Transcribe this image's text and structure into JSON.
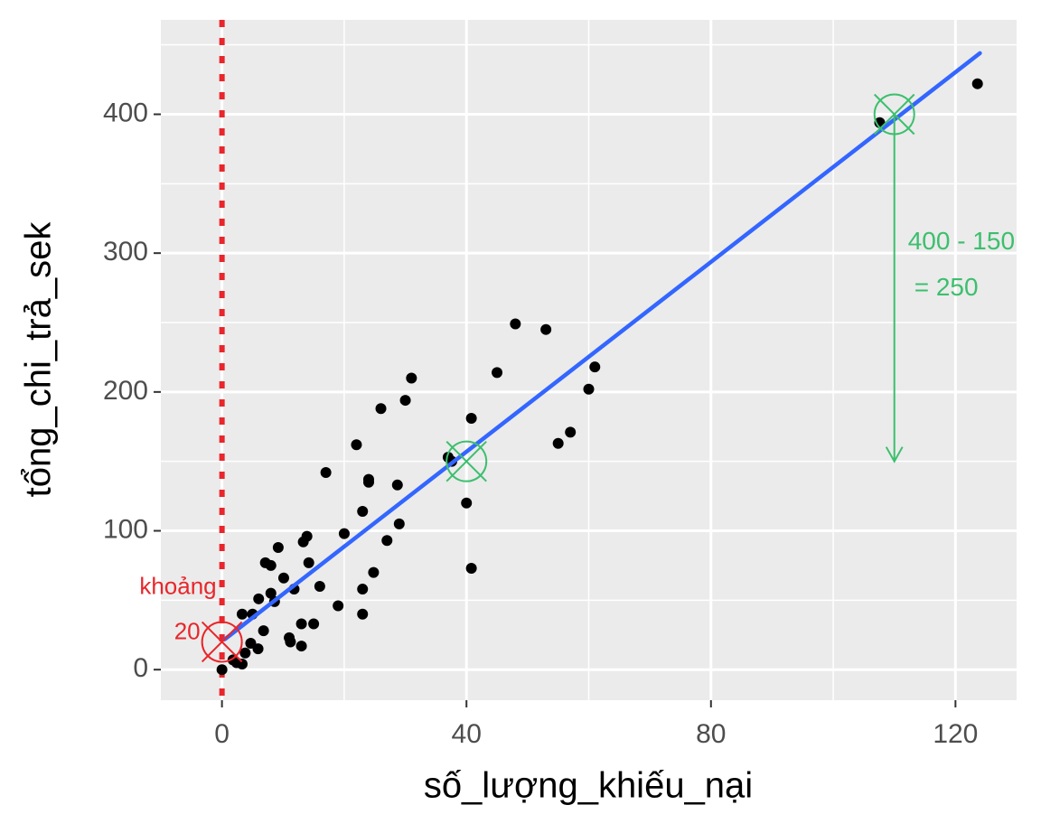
{
  "chart_data": {
    "type": "scatter",
    "x_label": "số_lượng_khiếu_nại",
    "y_label": "tổng_chi_trả_sek",
    "xlim": [
      -10,
      130
    ],
    "ylim": [
      -22,
      468
    ],
    "xticks": [
      0,
      40,
      80,
      120
    ],
    "yticks": [
      0,
      100,
      200,
      300,
      400
    ],
    "minor_xticks": [
      20,
      60,
      100
    ],
    "minor_yticks": [
      50,
      150,
      250,
      350,
      450
    ],
    "grid": true,
    "points": {
      "color": "#000000",
      "x": [
        0,
        1.8,
        2.4,
        3.3,
        3.8,
        4.7,
        5.9,
        5,
        3.3,
        6,
        6.8,
        7.1,
        8,
        8,
        8.6,
        9.2,
        10.1,
        11,
        11.2,
        11.8,
        13,
        13,
        13.3,
        13.9,
        14.2,
        15,
        16,
        17,
        19,
        20,
        22,
        23,
        23,
        23,
        24,
        24,
        24.8,
        26,
        27,
        28.7,
        29,
        30,
        31,
        37,
        37.6,
        40,
        40.8,
        40.8,
        45,
        48,
        53,
        55,
        57,
        60,
        61,
        107.6,
        123.6
      ],
      "y": [
        0,
        7,
        5,
        4,
        12,
        19,
        15,
        40,
        40,
        51,
        28,
        77,
        75,
        55,
        49,
        88,
        66,
        23,
        20,
        58,
        33,
        17,
        92,
        96,
        77,
        33,
        60,
        142,
        46,
        98,
        162,
        114,
        58,
        40,
        137,
        135,
        70,
        188,
        93,
        133,
        105,
        194,
        210,
        153,
        150,
        120,
        181,
        73,
        214,
        249,
        245,
        163,
        171,
        202,
        218,
        394,
        422
      ]
    },
    "fit": {
      "color": "#3366ff",
      "x": [
        0.5,
        124
      ],
      "y": [
        22,
        444
      ]
    },
    "vline": {
      "x": 0,
      "color": "#e8262b"
    },
    "markers": [
      {
        "x": 0,
        "y": 20,
        "color": "#e8262b"
      },
      {
        "x": 40,
        "y": 150,
        "color": "#3cbf6e"
      },
      {
        "x": 110,
        "y": 400,
        "color": "#3cbf6e"
      }
    ],
    "arrow": {
      "x": 110,
      "y_from": 400,
      "y_to": 150,
      "color": "#3cbf6e"
    },
    "intercept_label": {
      "lines": [
        "khoảng",
        "20"
      ],
      "color": "#e8262b"
    },
    "diff_label": {
      "lines": [
        "400 - 150",
        "= 250"
      ],
      "color": "#3cbf6e"
    }
  }
}
